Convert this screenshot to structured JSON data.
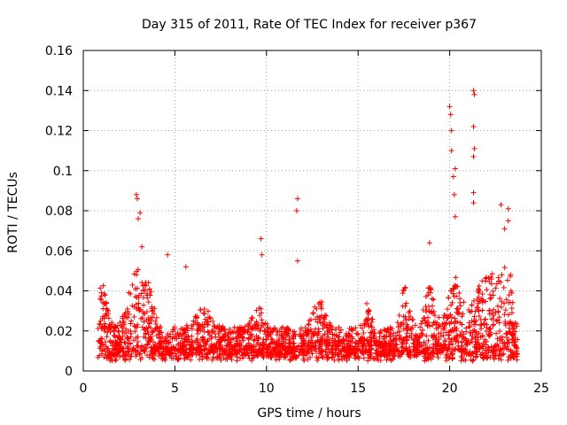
{
  "chart_data": {
    "type": "scatter",
    "title": "Day 315 of 2011, Rate Of TEC Index for receiver p367",
    "xlabel": "GPS time / hours",
    "ylabel": "ROTI / TECUs",
    "xlim": [
      0,
      25
    ],
    "ylim": [
      0,
      0.16
    ],
    "xticks": [
      0,
      5,
      10,
      15,
      20,
      25
    ],
    "yticks": [
      0,
      0.02,
      0.04,
      0.06,
      0.08,
      0.1,
      0.12,
      0.14,
      0.16
    ],
    "xtick_labels": [
      "0",
      "5",
      "10",
      "15",
      "20",
      "25"
    ],
    "ytick_labels": [
      "0",
      "0.02",
      "0.04",
      "0.06",
      "0.08",
      "0.1",
      "0.12",
      "0.14",
      "0.16"
    ],
    "grid": true,
    "marker": "+",
    "color": "#ff0000",
    "x_range_observed": [
      0.8,
      23.7
    ],
    "baseline_band": [
      0.005,
      0.03
    ],
    "notable_points": [
      {
        "x": 2.9,
        "y": 0.088
      },
      {
        "x": 2.95,
        "y": 0.086
      },
      {
        "x": 3.0,
        "y": 0.076
      },
      {
        "x": 3.1,
        "y": 0.079
      },
      {
        "x": 3.2,
        "y": 0.062
      },
      {
        "x": 4.6,
        "y": 0.058
      },
      {
        "x": 5.6,
        "y": 0.052
      },
      {
        "x": 9.7,
        "y": 0.066
      },
      {
        "x": 9.75,
        "y": 0.058
      },
      {
        "x": 11.7,
        "y": 0.086
      },
      {
        "x": 11.65,
        "y": 0.08
      },
      {
        "x": 11.7,
        "y": 0.055
      },
      {
        "x": 18.9,
        "y": 0.064
      },
      {
        "x": 20.0,
        "y": 0.132
      },
      {
        "x": 20.05,
        "y": 0.128
      },
      {
        "x": 20.1,
        "y": 0.12
      },
      {
        "x": 20.1,
        "y": 0.11
      },
      {
        "x": 20.2,
        "y": 0.097
      },
      {
        "x": 20.3,
        "y": 0.101
      },
      {
        "x": 20.25,
        "y": 0.088
      },
      {
        "x": 20.3,
        "y": 0.077
      },
      {
        "x": 21.3,
        "y": 0.14
      },
      {
        "x": 21.35,
        "y": 0.138
      },
      {
        "x": 21.3,
        "y": 0.122
      },
      {
        "x": 21.35,
        "y": 0.111
      },
      {
        "x": 21.3,
        "y": 0.107
      },
      {
        "x": 21.3,
        "y": 0.089
      },
      {
        "x": 21.3,
        "y": 0.084
      },
      {
        "x": 22.8,
        "y": 0.083
      },
      {
        "x": 23.2,
        "y": 0.081
      },
      {
        "x": 23.2,
        "y": 0.075
      },
      {
        "x": 23.0,
        "y": 0.071
      }
    ]
  }
}
